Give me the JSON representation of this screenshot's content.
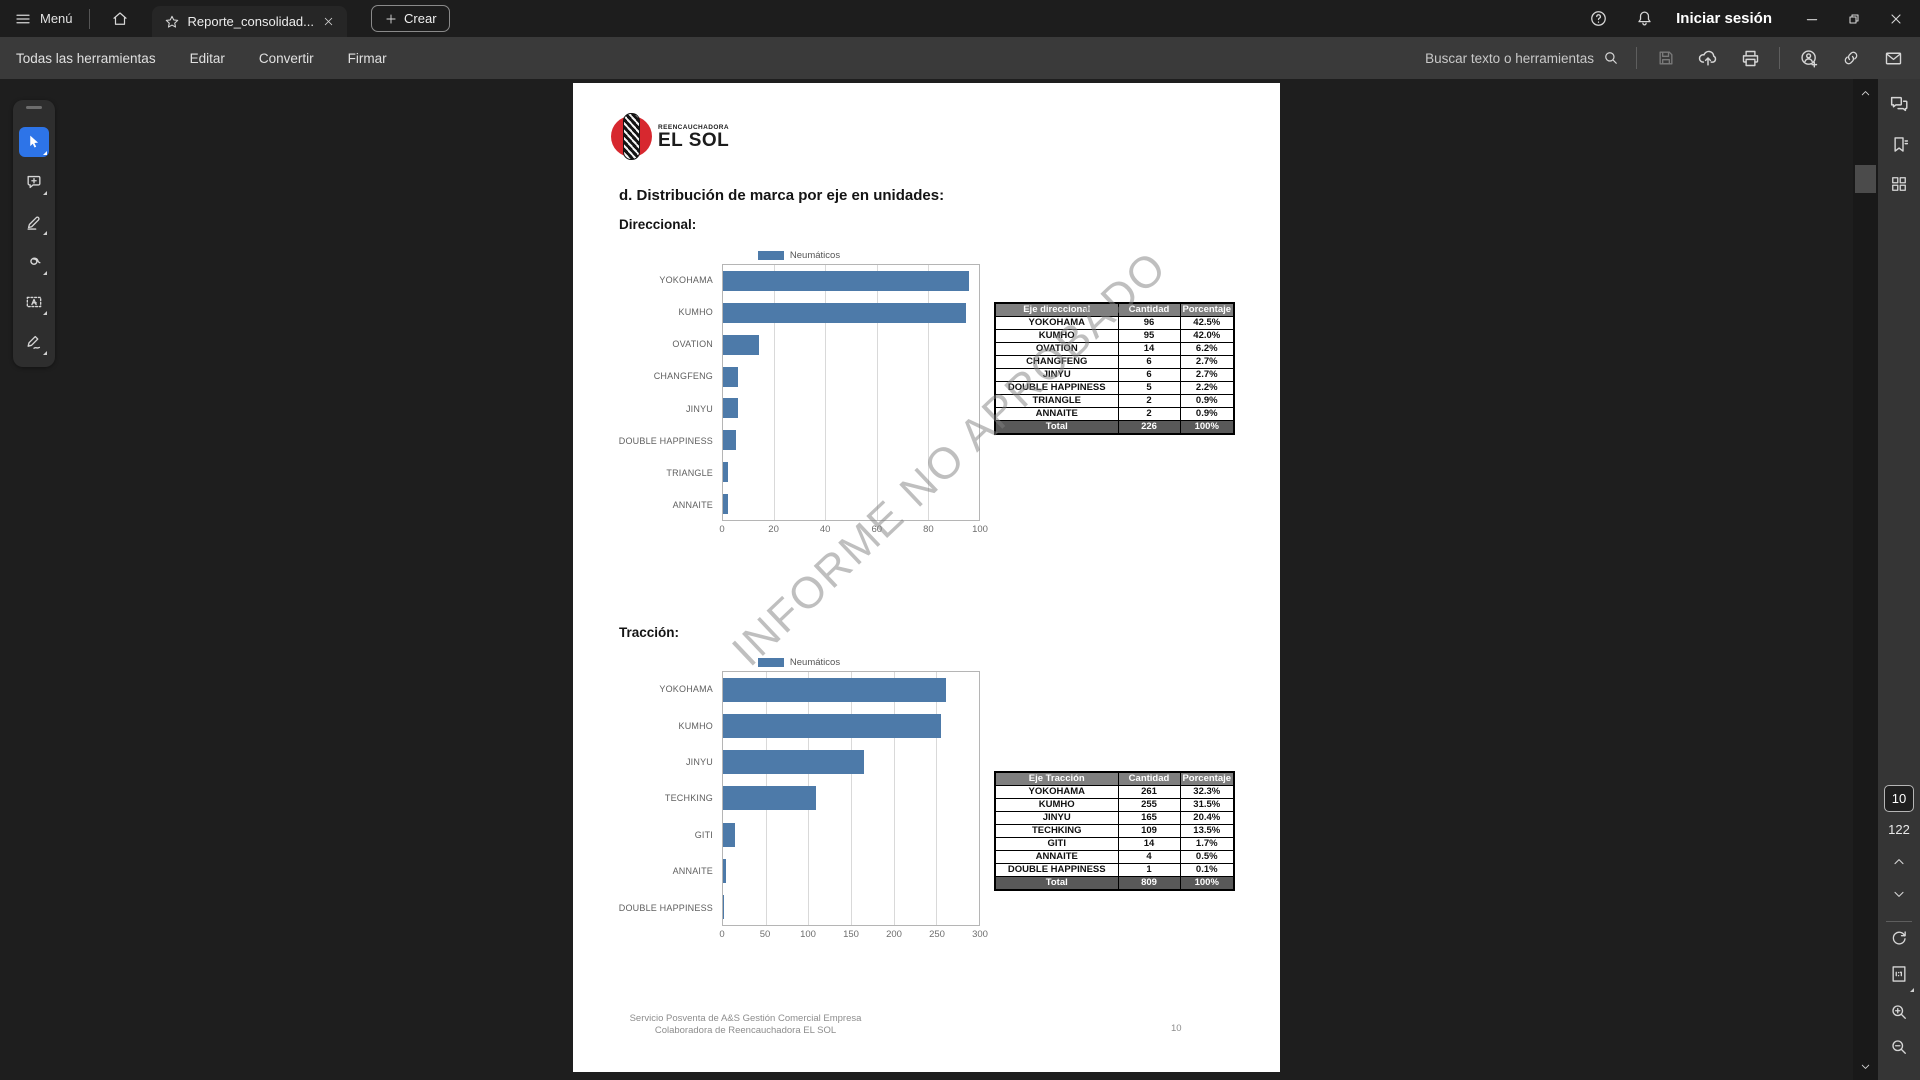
{
  "titlebar": {
    "menu": "Menú",
    "tab": "Reporte_consolidad...",
    "create": "Crear",
    "signin": "Iniciar sesión"
  },
  "toolbar": {
    "items": [
      "Todas las herramientas",
      "Editar",
      "Convertir",
      "Firmar"
    ],
    "search": "Buscar texto o herramientas",
    "right_icons": [
      "save-icon",
      "cloud-upload-icon",
      "print-icon",
      "person-add-icon",
      "link-icon",
      "email-icon"
    ]
  },
  "left_tools": [
    "select",
    "add-comment",
    "highlight",
    "draw",
    "add-text",
    "sign"
  ],
  "document": {
    "logo_top": "REENCAUCHADORA",
    "logo_bottom": "EL SOL",
    "heading": "d. Distribución de marca por eje en unidades:",
    "section1": "Direccional:",
    "section2": "Tracción:",
    "watermark": "INFORME NO APROBADO",
    "footer_line1": "Servicio Posventa de A&S Gestión Comercial Empresa",
    "footer_line2": "Colaboradora de Reencauchadora EL SOL",
    "footer_page": "10"
  },
  "chart_data": [
    {
      "type": "bar",
      "orientation": "horizontal",
      "title": "Direccional",
      "legend": [
        "Neumáticos"
      ],
      "legend_position": "top",
      "categories": [
        "YOKOHAMA",
        "KUMHO",
        "OVATION",
        "CHANGFENG",
        "JINYU",
        "DOUBLE HAPPINESS",
        "TRIANGLE",
        "ANNAITE"
      ],
      "values": [
        96,
        95,
        14,
        6,
        6,
        5,
        2,
        2
      ],
      "xlabel": "",
      "ylabel": "",
      "xlim": [
        0,
        100
      ],
      "xticks": [
        0,
        20,
        40,
        60,
        80,
        100
      ],
      "grid": true
    },
    {
      "type": "bar",
      "orientation": "horizontal",
      "title": "Tracción",
      "legend": [
        "Neumáticos"
      ],
      "legend_position": "top",
      "categories": [
        "YOKOHAMA",
        "KUMHO",
        "JINYU",
        "TECHKING",
        "GITI",
        "ANNAITE",
        "DOUBLE HAPPINESS"
      ],
      "values": [
        261,
        255,
        165,
        109,
        14,
        4,
        1
      ],
      "xlabel": "",
      "ylabel": "",
      "xlim": [
        0,
        300
      ],
      "xticks": [
        0,
        50,
        100,
        150,
        200,
        250,
        300
      ],
      "grid": true
    }
  ],
  "tables": [
    {
      "headers": [
        "Eje direccional",
        "Cantidad",
        "Porcentaje"
      ],
      "rows": [
        [
          "YOKOHAMA",
          "96",
          "42.5%"
        ],
        [
          "KUMHO",
          "95",
          "42.0%"
        ],
        [
          "OVATION",
          "14",
          "6.2%"
        ],
        [
          "CHANGFENG",
          "6",
          "2.7%"
        ],
        [
          "JINYU",
          "6",
          "2.7%"
        ],
        [
          "DOUBLE HAPPINESS",
          "5",
          "2.2%"
        ],
        [
          "TRIANGLE",
          "2",
          "0.9%"
        ],
        [
          "ANNAITE",
          "2",
          "0.9%"
        ]
      ],
      "total": [
        "Total",
        "226",
        "100%"
      ]
    },
    {
      "headers": [
        "Eje Tracción",
        "Cantidad",
        "Porcentaje"
      ],
      "rows": [
        [
          "YOKOHAMA",
          "261",
          "32.3%"
        ],
        [
          "KUMHO",
          "255",
          "31.5%"
        ],
        [
          "JINYU",
          "165",
          "20.4%"
        ],
        [
          "TECHKING",
          "109",
          "13.5%"
        ],
        [
          "GITI",
          "14",
          "1.7%"
        ],
        [
          "ANNAITE",
          "4",
          "0.5%"
        ],
        [
          "DOUBLE HAPPINESS",
          "1",
          "0.1%"
        ]
      ],
      "total": [
        "Total",
        "809",
        "100%"
      ]
    }
  ],
  "right_rail": {
    "icons_top": [
      "comments",
      "bookmarks",
      "page-thumbnails"
    ],
    "icons_bottom": [
      "previous-page",
      "next-page",
      "rotate",
      "fit-page",
      "zoom-in",
      "zoom-out"
    ],
    "current_page": "10",
    "total_pages": "122"
  },
  "colors": {
    "bar_blue": "#4d7aa9",
    "accent_blue": "#2d74e8",
    "logo_red": "#d7282f",
    "table_header_bg": "#7f7f7f",
    "table_total_bg": "#595959",
    "titlebar_bg": "#1d1d1d",
    "toolbar_bg": "#3a3a3a",
    "viewer_bg": "#1e1e1e"
  }
}
